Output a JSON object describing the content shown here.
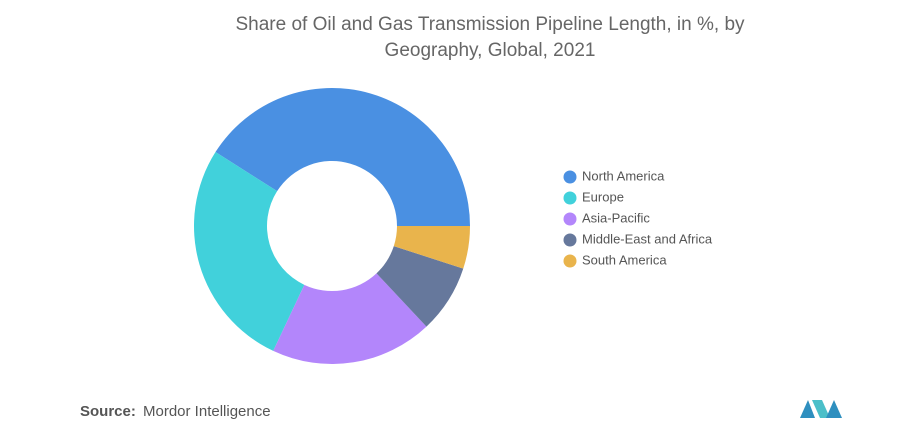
{
  "chart_data": {
    "type": "pie",
    "title": "Share of Oil and Gas Transmission Pipeline Length, in %, by Geography, Global, 2021",
    "categories": [
      "North America",
      "Europe",
      "Asia-Pacific",
      "Middle-East and Africa",
      "South America"
    ],
    "values": [
      41,
      27,
      19,
      8,
      5
    ],
    "colors": [
      "#4a90e2",
      "#41d1db",
      "#b386fb",
      "#66789c",
      "#e9b44c"
    ],
    "donut": true,
    "legend": "right"
  },
  "source_label": "Source:",
  "source": "Mordor Intelligence"
}
